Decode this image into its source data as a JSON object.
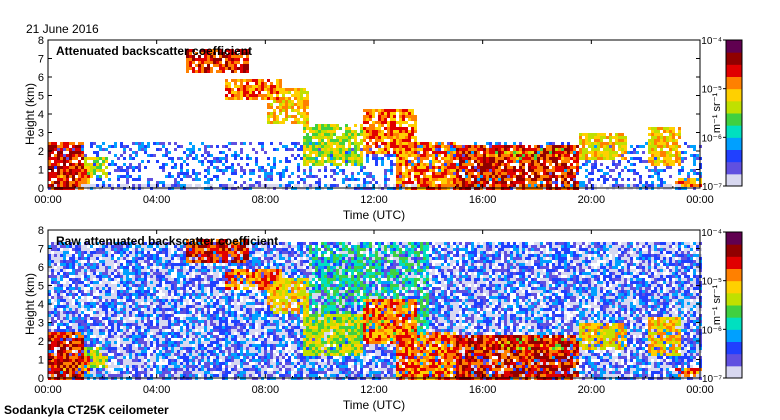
{
  "date_label": "21 June 2016",
  "instrument_label": "Sodankyla CT25K ceilometer",
  "colorbar_unit": "m⁻¹ sr⁻¹",
  "colorbar_colors": [
    "#d8d8f0",
    "#6050e0",
    "#2040ff",
    "#00a0ff",
    "#00e0c0",
    "#40d040",
    "#c0e000",
    "#ffd000",
    "#ff8000",
    "#e00000",
    "#900000",
    "#600050"
  ],
  "chart_data": [
    {
      "type": "heatmap",
      "title": "Attenuated backscatter coefficient",
      "xlabel": "Time (UTC)",
      "ylabel": "Height (km)",
      "x_ticks": [
        "00:00",
        "04:00",
        "08:00",
        "12:00",
        "16:00",
        "20:00",
        "00:00"
      ],
      "x_range_hours": [
        0,
        24
      ],
      "y_ticks": [
        0,
        1,
        2,
        3,
        4,
        5,
        6,
        7,
        8
      ],
      "ylim": [
        0,
        8
      ],
      "colorbar": {
        "scale": "log",
        "range": [
          1e-07,
          0.0001
        ],
        "ticks": [
          "10⁻⁷",
          "10⁻⁶",
          "10⁻⁵",
          "10⁻⁴"
        ]
      }
    },
    {
      "type": "heatmap",
      "title": "Raw attenuated backscatter coefficient",
      "xlabel": "Time (UTC)",
      "ylabel": "Height (km)",
      "x_ticks": [
        "00:00",
        "04:00",
        "08:00",
        "12:00",
        "16:00",
        "20:00",
        "00:00"
      ],
      "x_range_hours": [
        0,
        24
      ],
      "y_ticks": [
        0,
        1,
        2,
        3,
        4,
        5,
        6,
        7,
        8
      ],
      "ylim": [
        0,
        8
      ],
      "colorbar": {
        "scale": "log",
        "range": [
          1e-07,
          0.0001
        ],
        "ticks": [
          "10⁻⁷",
          "10⁻⁶",
          "10⁻⁵",
          "10⁻⁴"
        ]
      }
    }
  ]
}
